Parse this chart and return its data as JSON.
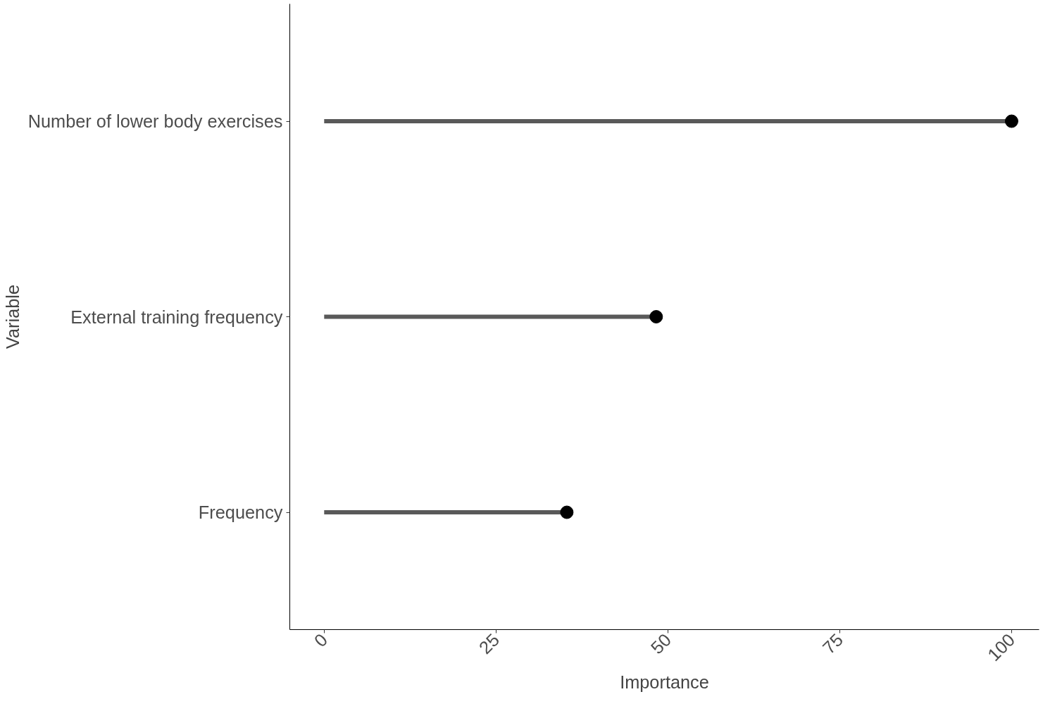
{
  "chart_data": {
    "type": "lollipop",
    "orientation": "horizontal",
    "xlabel": "Importance",
    "ylabel": "Variable",
    "categories": [
      "Number of lower body exercises",
      "External training frequency",
      "Frequency"
    ],
    "values": [
      100,
      48.3,
      35.3
    ],
    "color": "#595959",
    "colors": [
      "#000000",
      "#000000",
      "#000000"
    ],
    "marker": "circle",
    "xlim": [
      -5,
      104
    ],
    "xticks": [
      0,
      25,
      50,
      75,
      100
    ]
  }
}
